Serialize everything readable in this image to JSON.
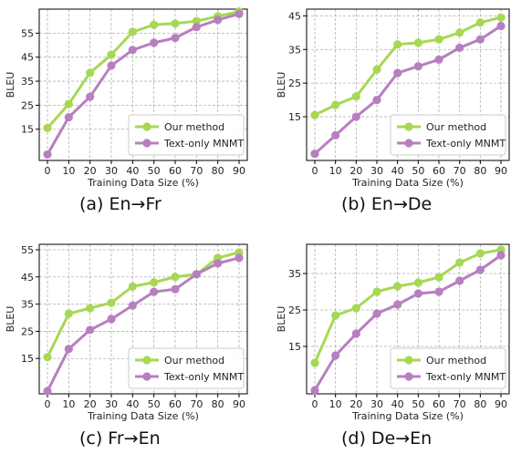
{
  "colors": {
    "our_method": "#a6d854",
    "text_only": "#b77fc0",
    "grid": "#b0b0b0"
  },
  "chart_data": [
    {
      "type": "line",
      "caption": "(a) En→Fr",
      "xlabel": "Training Data Size (%)",
      "ylabel": "BLEU",
      "x": [
        0,
        10,
        20,
        30,
        40,
        50,
        60,
        70,
        80,
        90
      ],
      "xticks": [
        "0",
        "10",
        "20",
        "30",
        "40",
        "50",
        "60",
        "70",
        "80",
        "90"
      ],
      "yticks": [
        15,
        25,
        35,
        45,
        55
      ],
      "ylim": [
        2,
        65
      ],
      "grid": true,
      "legend": "bottom-right",
      "series": [
        {
          "name": "Our method",
          "values": [
            15.5,
            25.5,
            38.5,
            46,
            55.5,
            58.5,
            59,
            60,
            62,
            64
          ]
        },
        {
          "name": "Text-only MNMT",
          "values": [
            4.5,
            20,
            28.5,
            41.5,
            48,
            51,
            53,
            57.5,
            60.5,
            63
          ]
        }
      ]
    },
    {
      "type": "line",
      "caption": "(b) En→De",
      "xlabel": "Training Data Size (%)",
      "ylabel": "BLEU",
      "x": [
        0,
        10,
        20,
        30,
        40,
        50,
        60,
        70,
        80,
        90
      ],
      "xticks": [
        "0",
        "10",
        "20",
        "30",
        "40",
        "50",
        "60",
        "70",
        "80",
        "90"
      ],
      "yticks": [
        15,
        25,
        35,
        45
      ],
      "ylim": [
        2,
        47
      ],
      "grid": true,
      "legend": "bottom-right",
      "series": [
        {
          "name": "Our method",
          "values": [
            15.5,
            18.5,
            21,
            29,
            36.5,
            37,
            38,
            40,
            43,
            44.5
          ]
        },
        {
          "name": "Text-only MNMT",
          "values": [
            4,
            9.5,
            15,
            20,
            28,
            30,
            32,
            35.5,
            38,
            42
          ]
        }
      ]
    },
    {
      "type": "line",
      "caption": "(c) Fr→En",
      "xlabel": "Training Data Size (%)",
      "ylabel": "BLEU",
      "x": [
        0,
        10,
        20,
        30,
        40,
        50,
        60,
        70,
        80,
        90
      ],
      "xticks": [
        "0",
        "10",
        "20",
        "30",
        "40",
        "50",
        "60",
        "70",
        "80",
        "90"
      ],
      "yticks": [
        15,
        25,
        35,
        45,
        55
      ],
      "ylim": [
        2,
        57
      ],
      "grid": true,
      "legend": "bottom-right",
      "series": [
        {
          "name": "Our method",
          "values": [
            15.5,
            31.5,
            33.5,
            35.5,
            41.5,
            43,
            45,
            46,
            52,
            54
          ]
        },
        {
          "name": "Text-only MNMT",
          "values": [
            3,
            18.5,
            25.5,
            29.5,
            34.5,
            39.5,
            40.5,
            46,
            50,
            52
          ]
        }
      ]
    },
    {
      "type": "line",
      "caption": "(d) De→En",
      "xlabel": "Training Data Size (%)",
      "ylabel": "BLEU",
      "x": [
        0,
        10,
        20,
        30,
        40,
        50,
        60,
        70,
        80,
        90
      ],
      "xticks": [
        "0",
        "10",
        "20",
        "30",
        "40",
        "50",
        "60",
        "70",
        "80",
        "90"
      ],
      "yticks": [
        15,
        25,
        35
      ],
      "ylim": [
        2,
        43
      ],
      "grid": true,
      "legend": "bottom-right",
      "series": [
        {
          "name": "Our method",
          "values": [
            10.5,
            23.5,
            25.5,
            30,
            31.5,
            32.5,
            34,
            38,
            40.5,
            41.5
          ]
        },
        {
          "name": "Text-only MNMT",
          "values": [
            3,
            12.5,
            18.5,
            24,
            26.5,
            29.5,
            30,
            33,
            36,
            40
          ]
        }
      ]
    }
  ]
}
